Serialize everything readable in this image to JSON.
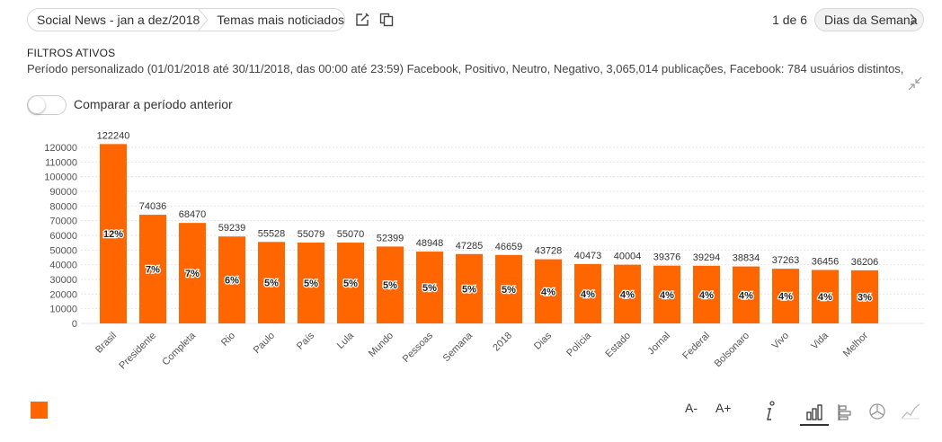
{
  "breadcrumb": {
    "dashboard": "Social News - jan a dez/2018",
    "widget": "Temas mais noticiados"
  },
  "icons": {
    "edit": "edit-icon",
    "copy": "copy-icon",
    "next": "chevron-right-icon",
    "collapse": "collapse-icon"
  },
  "pagination": {
    "position": "1 de 6",
    "next_label": "Dias da Semana"
  },
  "filters": {
    "title": "FILTROS ATIVOS",
    "text": "Período personalizado (01/01/2018 até 30/11/2018, das 00:00 até 23:59) Facebook, Positivo, Neutro, Negativo, 3,065,014 publicações, Facebook: 784 usuários distintos,"
  },
  "compare": {
    "label": "Comparar a período anterior",
    "enabled": false
  },
  "toolbar": {
    "font_decrease": "A-",
    "font_increase": "A+",
    "active_chart_type": "vertical-bar"
  },
  "colors": {
    "bar": "#ff6600",
    "accent": "#333333"
  },
  "chart_data": {
    "type": "bar",
    "categories": [
      "Brasil",
      "Presidente",
      "Completa",
      "Rio",
      "Paulo",
      "País",
      "Lula",
      "Mundo",
      "Pessoas",
      "Semana",
      "2018",
      "Dias",
      "Polícia",
      "Estado",
      "Jornal",
      "Federal",
      "Bolsonaro",
      "Vivo",
      "Vida",
      "Melhor"
    ],
    "values": [
      122240,
      74036,
      68470,
      59239,
      55528,
      55079,
      55070,
      52399,
      48948,
      47285,
      46659,
      43728,
      40473,
      40004,
      39376,
      39294,
      38834,
      37263,
      36456,
      36206
    ],
    "percent_labels": [
      "12%",
      "7%",
      "7%",
      "6%",
      "5%",
      "5%",
      "5%",
      "5%",
      "5%",
      "5%",
      "5%",
      "4%",
      "4%",
      "4%",
      "4%",
      "4%",
      "4%",
      "4%",
      "4%",
      "3%"
    ],
    "yticks": [
      0,
      10000,
      20000,
      30000,
      40000,
      50000,
      60000,
      70000,
      80000,
      90000,
      100000,
      110000,
      120000
    ],
    "ylim": [
      0,
      120000
    ],
    "grid": true,
    "title": "",
    "xlabel": "",
    "ylabel": ""
  }
}
